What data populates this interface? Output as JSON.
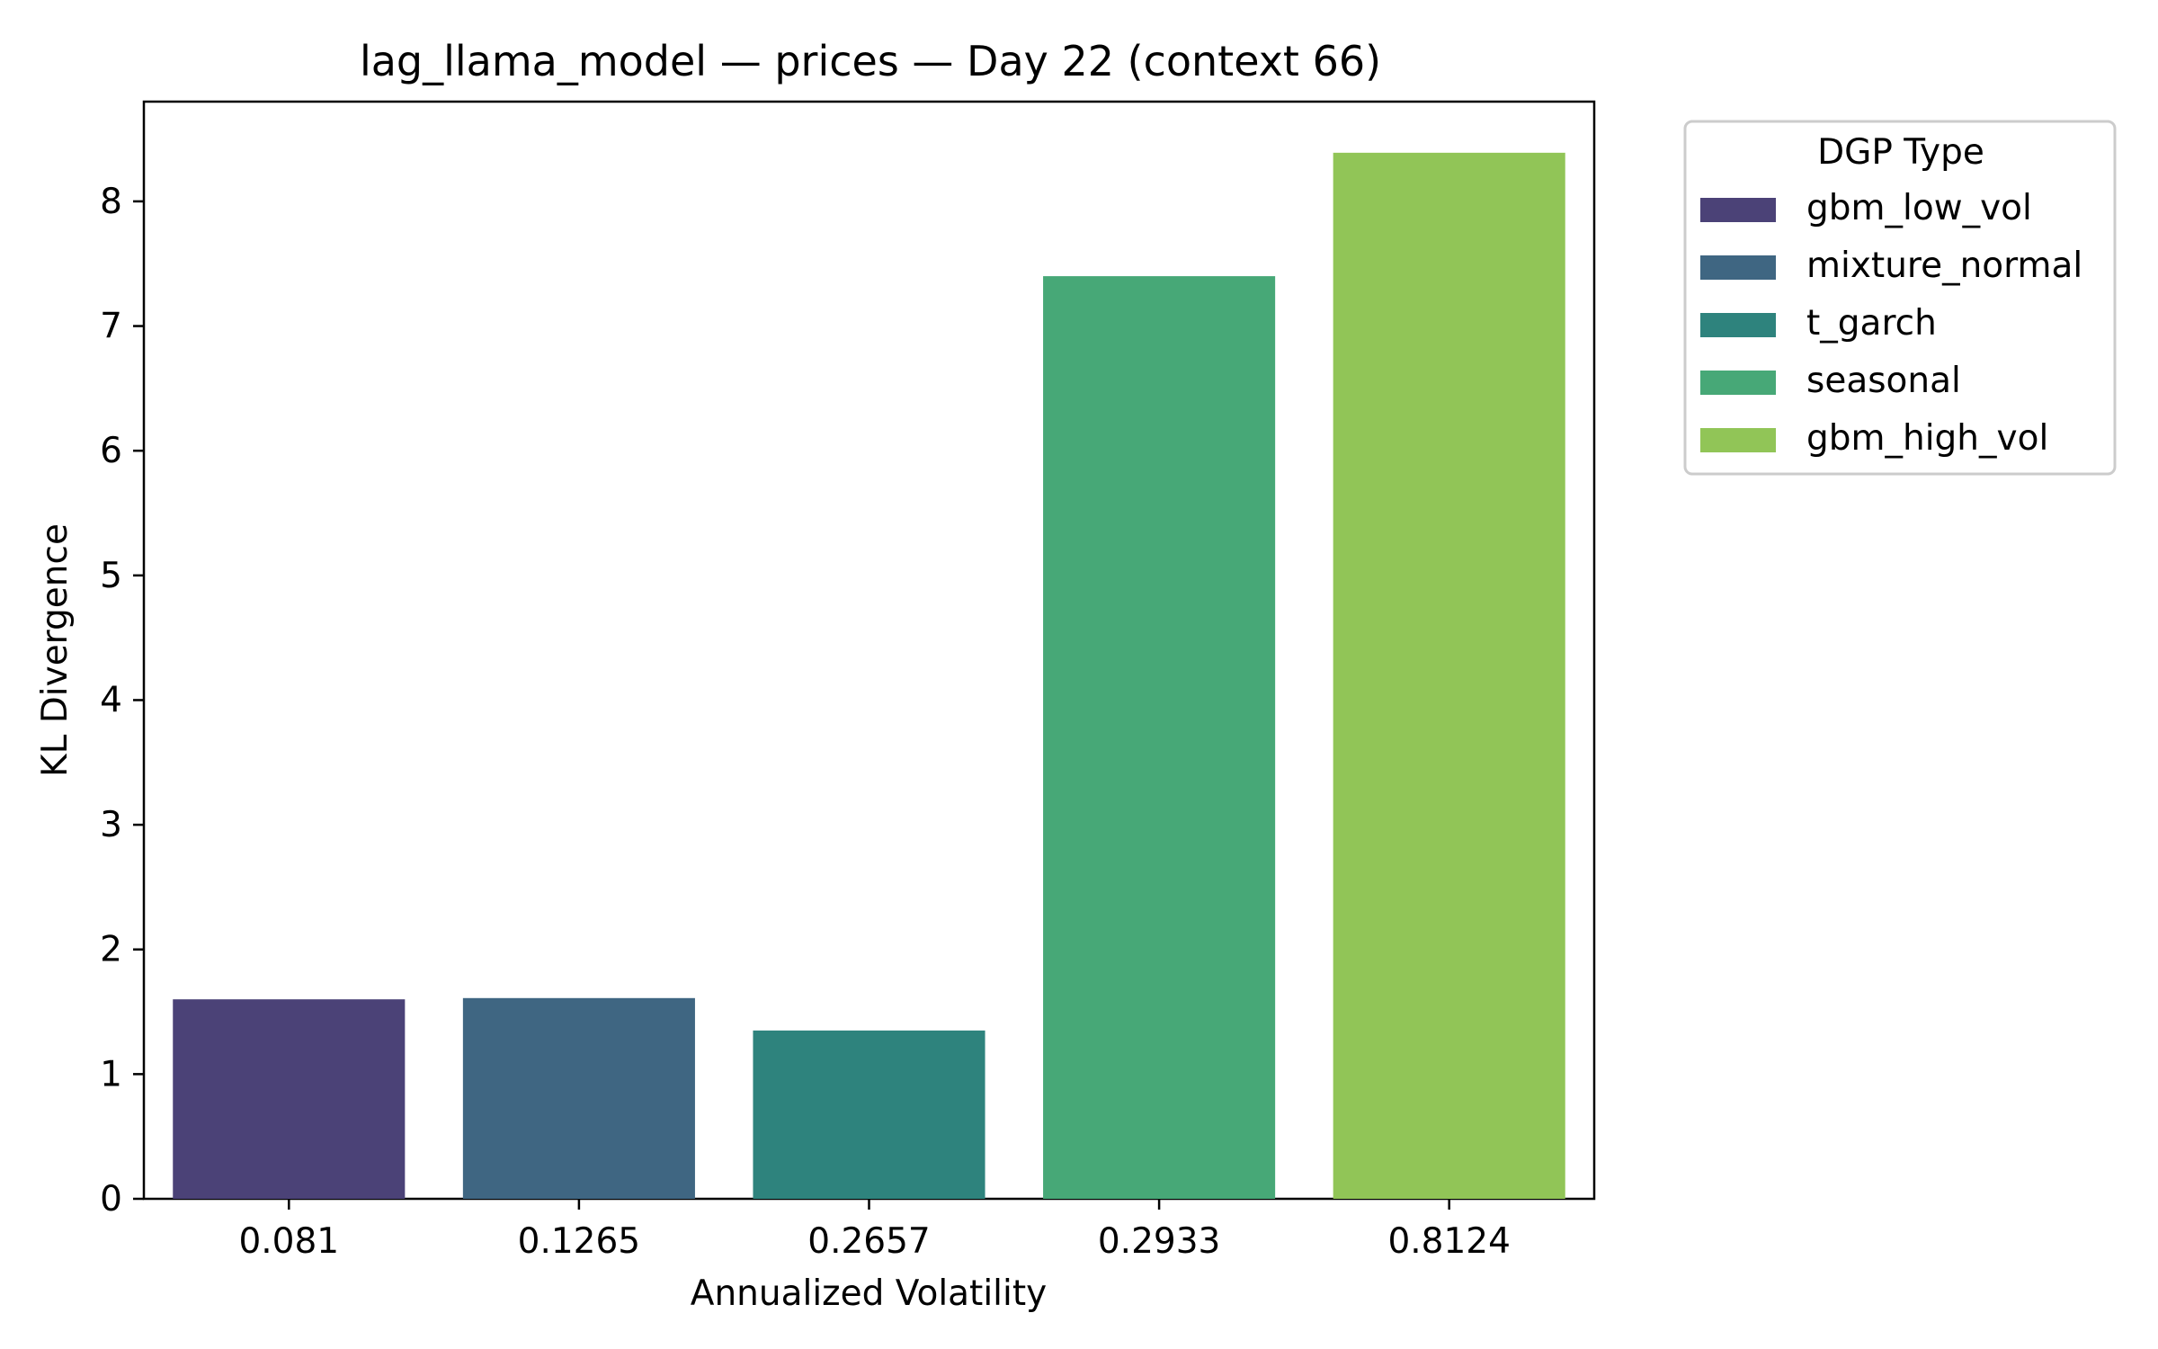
{
  "chart_data": {
    "type": "bar",
    "title": "lag_llama_model — prices — Day 22 (context 66)",
    "xlabel": "Annualized Volatility",
    "ylabel": "KL Divergence",
    "categories": [
      "0.081",
      "0.1265",
      "0.2657",
      "0.2933",
      "0.8124"
    ],
    "values": [
      1.6,
      1.61,
      1.35,
      7.4,
      8.39
    ],
    "dgp_type": [
      "gbm_low_vol",
      "mixture_normal",
      "t_garch",
      "seasonal",
      "gbm_high_vol"
    ],
    "colors": [
      "#4b4277",
      "#3f6682",
      "#2e837d",
      "#47a877",
      "#91c557"
    ],
    "ylim": [
      0,
      8.8
    ],
    "yticks": [
      0,
      1,
      2,
      3,
      4,
      5,
      6,
      7,
      8
    ],
    "grid": false,
    "legend": {
      "title": "DGP Type",
      "placement": "outside-right-top",
      "entries": [
        "gbm_low_vol",
        "mixture_normal",
        "t_garch",
        "seasonal",
        "gbm_high_vol"
      ]
    }
  }
}
